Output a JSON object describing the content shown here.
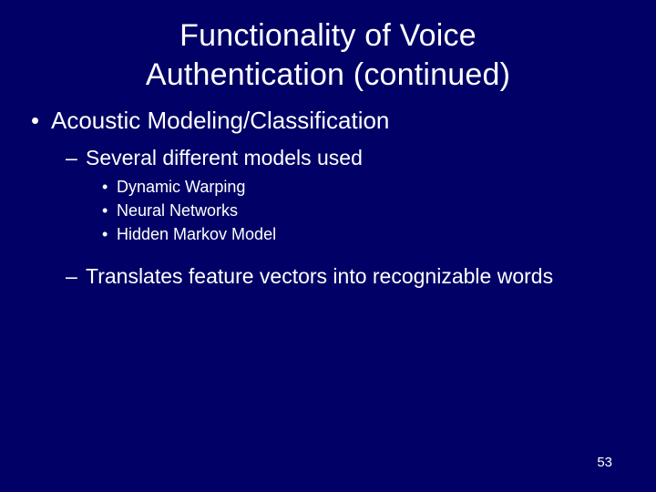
{
  "styling": {
    "background_color": "#000066",
    "text_color": "#ffffff",
    "font_family": "Arial",
    "title_fontsize": 34,
    "lvl1_fontsize": 26,
    "lvl2_fontsize": 23,
    "lvl3_fontsize": 18,
    "pagenum_fontsize": 15,
    "slide_width": 720,
    "slide_height": 540
  },
  "title_line1": "Functionality of Voice",
  "title_line2": "Authentication (continued)",
  "bullets": {
    "lvl1_a": "Acoustic Modeling/Classification",
    "lvl2_a": "Several different models used",
    "lvl3_a": "Dynamic Warping",
    "lvl3_b": "Neural Networks",
    "lvl3_c": "Hidden Markov Model",
    "lvl2_b": "Translates feature vectors into recognizable words"
  },
  "page_number": "53"
}
